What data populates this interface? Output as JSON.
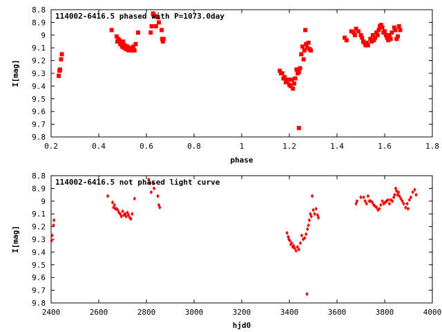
{
  "colors": {
    "points": "#ff0000",
    "axis": "#000000",
    "background": "#ffffff"
  },
  "chart_data": [
    {
      "type": "scatter",
      "title": "114002-6416.5 phased with P=1073.0day",
      "xlabel": "phase",
      "ylabel": "I[mag]",
      "xlim": [
        0.2,
        1.8
      ],
      "ylim": [
        8.8,
        9.8
      ],
      "y_inverted": true,
      "grid": false,
      "x_ticks": [
        0.2,
        0.4,
        0.6,
        0.8,
        1,
        1.2,
        1.4,
        1.6,
        1.8
      ],
      "x_tick_labels": [
        "0.2",
        "0.4",
        "0.6",
        "0.8",
        "1",
        "1.2",
        "1.4",
        "1.6",
        "1.8"
      ],
      "y_ticks": [
        8.8,
        8.9,
        9,
        9.1,
        9.2,
        9.3,
        9.4,
        9.5,
        9.6,
        9.7,
        9.8
      ],
      "y_tick_labels": [
        "8.8",
        "8.9",
        "9",
        "9.1",
        "9.2",
        "9.3",
        "9.4",
        "9.5",
        "9.6",
        "9.7",
        "9.8"
      ],
      "series": [
        {
          "marker": "filled-square",
          "points": [
            [
              0.232,
              9.32
            ],
            [
              0.235,
              9.28
            ],
            [
              0.238,
              9.27
            ],
            [
              0.242,
              9.19
            ],
            [
              0.245,
              9.15
            ],
            [
              0.454,
              8.96
            ],
            [
              0.475,
              9.01
            ],
            [
              0.478,
              9.05
            ],
            [
              0.482,
              9.03
            ],
            [
              0.486,
              9.04
            ],
            [
              0.49,
              9.07
            ],
            [
              0.494,
              9.06
            ],
            [
              0.498,
              9.09
            ],
            [
              0.502,
              9.05
            ],
            [
              0.506,
              9.1
            ],
            [
              0.51,
              9.08
            ],
            [
              0.515,
              9.11
            ],
            [
              0.52,
              9.09
            ],
            [
              0.525,
              9.12
            ],
            [
              0.53,
              9.1
            ],
            [
              0.535,
              9.11
            ],
            [
              0.54,
              9.12
            ],
            [
              0.545,
              9.09
            ],
            [
              0.55,
              9.12
            ],
            [
              0.555,
              9.07
            ],
            [
              0.565,
              8.98
            ],
            [
              0.618,
              8.98
            ],
            [
              0.622,
              8.93
            ],
            [
              0.628,
              8.83
            ],
            [
              0.635,
              8.85
            ],
            [
              0.64,
              8.93
            ],
            [
              0.648,
              8.86
            ],
            [
              0.652,
              8.9
            ],
            [
              0.664,
              8.96
            ],
            [
              0.666,
              9.03
            ],
            [
              0.669,
              9.05
            ],
            [
              0.672,
              9.03
            ],
            [
              1.16,
              9.28
            ],
            [
              1.165,
              9.3
            ],
            [
              1.17,
              9.3
            ],
            [
              1.175,
              9.34
            ],
            [
              1.18,
              9.33
            ],
            [
              1.185,
              9.37
            ],
            [
              1.19,
              9.36
            ],
            [
              1.195,
              9.35
            ],
            [
              1.2,
              9.39
            ],
            [
              1.205,
              9.4
            ],
            [
              1.21,
              9.35
            ],
            [
              1.215,
              9.42
            ],
            [
              1.22,
              9.38
            ],
            [
              1.225,
              9.34
            ],
            [
              1.23,
              9.27
            ],
            [
              1.235,
              9.3
            ],
            [
              1.24,
              9.29
            ],
            [
              1.245,
              9.26
            ],
            [
              1.25,
              9.15
            ],
            [
              1.255,
              9.09
            ],
            [
              1.26,
              9.19
            ],
            [
              1.263,
              9.12
            ],
            [
              1.267,
              8.96
            ],
            [
              1.27,
              9.07
            ],
            [
              1.275,
              9.1
            ],
            [
              1.28,
              9.06
            ],
            [
              1.285,
              9.11
            ],
            [
              1.29,
              9.12
            ],
            [
              1.24,
              9.73
            ],
            [
              1.432,
              9.02
            ],
            [
              1.44,
              9.04
            ],
            [
              1.46,
              8.97
            ],
            [
              1.47,
              8.98
            ],
            [
              1.475,
              9.0
            ],
            [
              1.48,
              8.95
            ],
            [
              1.49,
              8.97
            ],
            [
              1.5,
              9.0
            ],
            [
              1.505,
              9.02
            ],
            [
              1.51,
              9.05
            ],
            [
              1.515,
              9.06
            ],
            [
              1.52,
              9.08
            ],
            [
              1.525,
              9.06
            ],
            [
              1.53,
              9.08
            ],
            [
              1.54,
              9.03
            ],
            [
              1.545,
              9.05
            ],
            [
              1.55,
              9.0
            ],
            [
              1.555,
              9.04
            ],
            [
              1.56,
              9.02
            ],
            [
              1.565,
              8.98
            ],
            [
              1.57,
              9.0
            ],
            [
              1.575,
              8.96
            ],
            [
              1.58,
              8.93
            ],
            [
              1.585,
              8.92
            ],
            [
              1.59,
              8.94
            ],
            [
              1.595,
              8.98
            ],
            [
              1.6,
              8.97
            ],
            [
              1.605,
              9.0
            ],
            [
              1.61,
              9.02
            ],
            [
              1.615,
              9.04
            ],
            [
              1.62,
              9.0
            ],
            [
              1.625,
              9.03
            ],
            [
              1.63,
              8.98
            ],
            [
              1.64,
              8.94
            ],
            [
              1.645,
              8.96
            ],
            [
              1.65,
              9.03
            ],
            [
              1.655,
              9.01
            ],
            [
              1.66,
              8.93
            ],
            [
              1.665,
              8.96
            ]
          ]
        }
      ]
    },
    {
      "type": "scatter",
      "title": "114002-6416.5 not phased light curve",
      "xlabel": "hjd0",
      "ylabel": "I[mag]",
      "xlim": [
        2400,
        4000
      ],
      "ylim": [
        8.8,
        9.8
      ],
      "y_inverted": true,
      "grid": false,
      "x_ticks": [
        2400,
        2600,
        2800,
        3000,
        3200,
        3400,
        3600,
        3800,
        4000
      ],
      "x_tick_labels": [
        "2400",
        "2600",
        "2800",
        "3000",
        "3200",
        "3400",
        "3600",
        "3800",
        "4000"
      ],
      "y_ticks": [
        8.8,
        8.9,
        9,
        9.1,
        9.2,
        9.3,
        9.4,
        9.5,
        9.6,
        9.7,
        9.8
      ],
      "y_tick_labels": [
        "8.8",
        "8.9",
        "9",
        "9.1",
        "9.2",
        "9.3",
        "9.4",
        "9.5",
        "9.6",
        "9.7",
        "9.8"
      ],
      "series": [
        {
          "marker": "filled-diamond",
          "points": [
            [
              2402,
              9.31
            ],
            [
              2404,
              9.27
            ],
            [
              2410,
              9.19
            ],
            [
              2412,
              9.15
            ],
            [
              2638,
              8.96
            ],
            [
              2658,
              9.01
            ],
            [
              2662,
              9.05
            ],
            [
              2666,
              9.03
            ],
            [
              2670,
              9.06
            ],
            [
              2675,
              9.06
            ],
            [
              2680,
              9.07
            ],
            [
              2685,
              9.09
            ],
            [
              2690,
              9.1
            ],
            [
              2695,
              9.12
            ],
            [
              2700,
              9.08
            ],
            [
              2705,
              9.11
            ],
            [
              2710,
              9.1
            ],
            [
              2715,
              9.12
            ],
            [
              2720,
              9.09
            ],
            [
              2725,
              9.11
            ],
            [
              2730,
              9.13
            ],
            [
              2735,
              9.14
            ],
            [
              2740,
              9.1
            ],
            [
              2750,
              8.98
            ],
            [
              2810,
              8.83
            ],
            [
              2815,
              8.86
            ],
            [
              2820,
              8.93
            ],
            [
              2828,
              8.86
            ],
            [
              2832,
              8.9
            ],
            [
              2848,
              8.96
            ],
            [
              2852,
              9.03
            ],
            [
              2856,
              9.05
            ],
            [
              3390,
              9.25
            ],
            [
              3395,
              9.28
            ],
            [
              3398,
              9.3
            ],
            [
              3402,
              9.31
            ],
            [
              3406,
              9.34
            ],
            [
              3410,
              9.33
            ],
            [
              3414,
              9.36
            ],
            [
              3418,
              9.35
            ],
            [
              3422,
              9.37
            ],
            [
              3428,
              9.39
            ],
            [
              3434,
              9.36
            ],
            [
              3440,
              9.38
            ],
            [
              3446,
              9.33
            ],
            [
              3452,
              9.27
            ],
            [
              3458,
              9.3
            ],
            [
              3464,
              9.29
            ],
            [
              3470,
              9.26
            ],
            [
              3476,
              9.22
            ],
            [
              3480,
              9.19
            ],
            [
              3484,
              9.15
            ],
            [
              3488,
              9.1
            ],
            [
              3492,
              9.12
            ],
            [
              3496,
              8.96
            ],
            [
              3500,
              9.07
            ],
            [
              3506,
              9.1
            ],
            [
              3512,
              9.06
            ],
            [
              3518,
              9.11
            ],
            [
              3522,
              9.13
            ],
            [
              3474,
              9.73
            ],
            [
              3680,
              9.02
            ],
            [
              3684,
              9.0
            ],
            [
              3700,
              8.97
            ],
            [
              3712,
              8.97
            ],
            [
              3718,
              9.0
            ],
            [
              3724,
              9.02
            ],
            [
              3730,
              8.96
            ],
            [
              3736,
              9.0
            ],
            [
              3742,
              9.0
            ],
            [
              3748,
              9.01
            ],
            [
              3754,
              9.03
            ],
            [
              3760,
              9.04
            ],
            [
              3766,
              9.05
            ],
            [
              3772,
              9.07
            ],
            [
              3778,
              9.06
            ],
            [
              3784,
              9.03
            ],
            [
              3790,
              9.0
            ],
            [
              3796,
              9.02
            ],
            [
              3802,
              9.01
            ],
            [
              3808,
              9.0
            ],
            [
              3814,
              8.99
            ],
            [
              3820,
              9.02
            ],
            [
              3826,
              8.99
            ],
            [
              3832,
              9.0
            ],
            [
              3838,
              8.97
            ],
            [
              3842,
              8.95
            ],
            [
              3846,
              8.9
            ],
            [
              3850,
              8.92
            ],
            [
              3854,
              8.95
            ],
            [
              3858,
              8.93
            ],
            [
              3862,
              8.96
            ],
            [
              3868,
              8.98
            ],
            [
              3874,
              9.0
            ],
            [
              3880,
              9.02
            ],
            [
              3888,
              9.05
            ],
            [
              3894,
              9.02
            ],
            [
              3898,
              9.06
            ],
            [
              3904,
              8.99
            ],
            [
              3910,
              8.97
            ],
            [
              3918,
              8.93
            ],
            [
              3926,
              8.91
            ],
            [
              3932,
              8.95
            ]
          ]
        }
      ]
    }
  ]
}
